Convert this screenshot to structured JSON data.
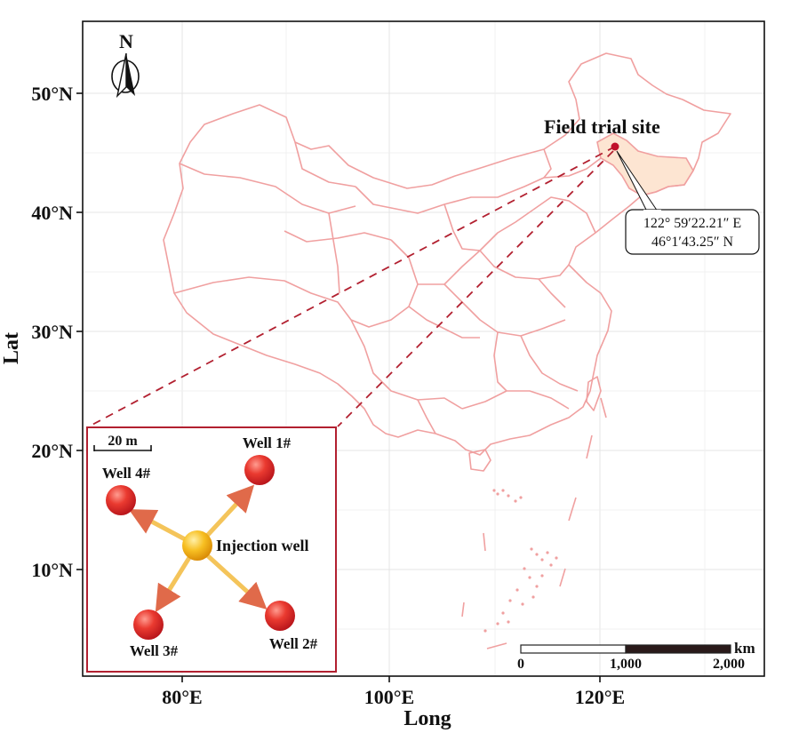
{
  "axes": {
    "x_label": "Long",
    "y_label": "Lat",
    "x_ticks": [
      "80°E",
      "100°E",
      "120°E"
    ],
    "y_ticks": [
      "50°N",
      "40°N",
      "30°N",
      "20°N",
      "10°N"
    ]
  },
  "north_arrow": {
    "label": "N"
  },
  "site": {
    "title": "Field trial site",
    "longitude": "122° 59′22.21″ E",
    "latitude": "46°1′43.25″ N"
  },
  "inset": {
    "scale_label": "20 m",
    "injection_label": "Injection well",
    "wells": [
      "Well 1#",
      "Well 2#",
      "Well 3#",
      "Well 4#"
    ]
  },
  "scale_bar": {
    "unit": "km",
    "labels": [
      "0",
      "1,000",
      "2,000"
    ]
  },
  "colors": {
    "boundary": "#f0a0a0",
    "highlight_fill": "#fde5d2",
    "leader_line": "#b22030",
    "well_red": "#e02a2a",
    "injection_gold": "#f2b418"
  }
}
